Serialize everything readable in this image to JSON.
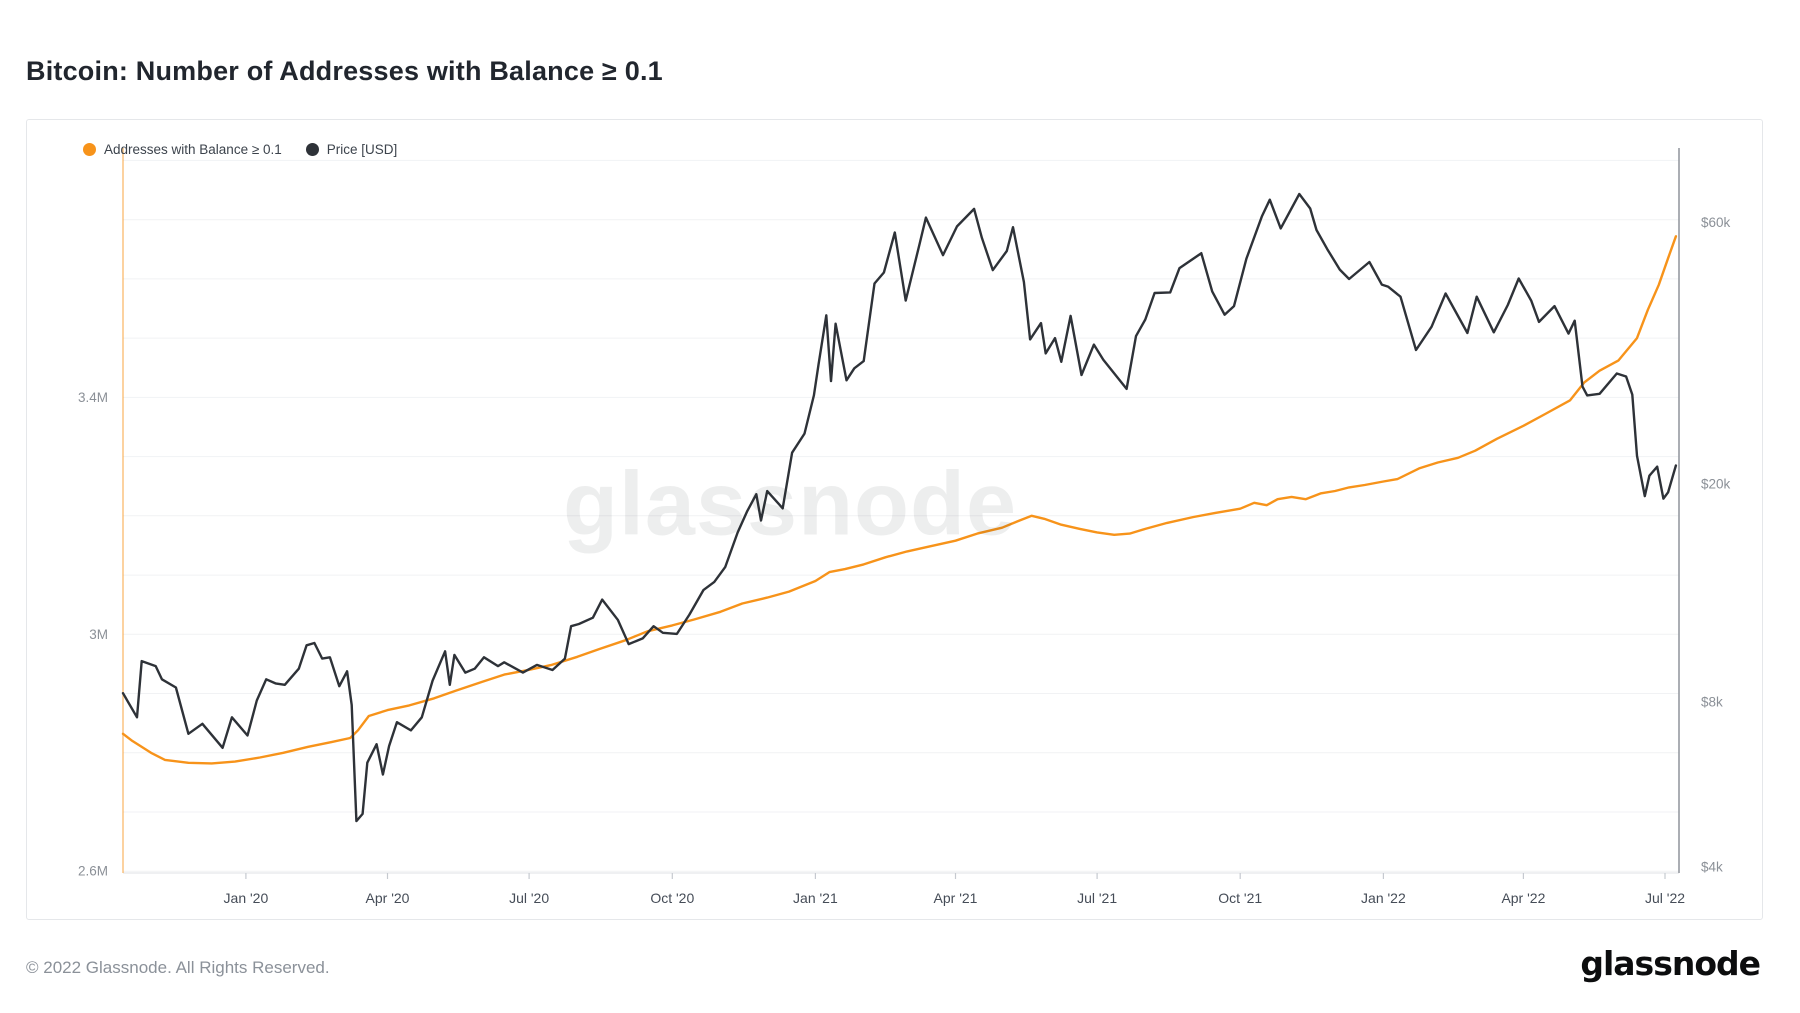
{
  "page": {
    "title": "Bitcoin: Number of Addresses with Balance ≥ 0.1",
    "footer": "© 2022 Glassnode. All Rights Reserved.",
    "brand_logo": "glassnode",
    "watermark": "glassnode"
  },
  "legend": [
    {
      "label": "Addresses with Balance ≥ 0.1",
      "color": "#f7931a"
    },
    {
      "label": "Price [USD]",
      "color": "#2e3238"
    }
  ],
  "chart_data": {
    "type": "line",
    "title": "Bitcoin: Number of Addresses with Balance ≥ 0.1",
    "grid": true,
    "legend_position": "top-left",
    "x_axis": {
      "type": "time",
      "start": "2019-10-14",
      "end": "2022-07-10",
      "ticks": [
        {
          "date": "2020-01-01",
          "label": "Jan '20"
        },
        {
          "date": "2020-04-01",
          "label": "Apr '20"
        },
        {
          "date": "2020-07-01",
          "label": "Jul '20"
        },
        {
          "date": "2020-10-01",
          "label": "Oct '20"
        },
        {
          "date": "2021-01-01",
          "label": "Jan '21"
        },
        {
          "date": "2021-04-01",
          "label": "Apr '21"
        },
        {
          "date": "2021-07-01",
          "label": "Jul '21"
        },
        {
          "date": "2021-10-01",
          "label": "Oct '21"
        },
        {
          "date": "2022-01-01",
          "label": "Jan '22"
        },
        {
          "date": "2022-04-01",
          "label": "Apr '22"
        },
        {
          "date": "2022-07-01",
          "label": "Jul '22"
        }
      ]
    },
    "y_axis_left": {
      "name": "Addresses with Balance ≥ 0.1",
      "scale": "linear",
      "unit": "million addresses",
      "min": 2.597,
      "max": 3.821,
      "axis_line_color": "#f7931a",
      "ticks": [
        {
          "value": 3.4,
          "label": "3.4M"
        },
        {
          "value": 3.0,
          "label": "3M"
        },
        {
          "value": 2.6,
          "label": "2.6M"
        }
      ],
      "gridlines": [
        2.6,
        2.7,
        2.8,
        2.9,
        3.0,
        3.1,
        3.2,
        3.3,
        3.4,
        3.5,
        3.6,
        3.7,
        3.8
      ]
    },
    "y_axis_right": {
      "name": "Price [USD]",
      "scale": "log",
      "unit": "USD",
      "min": 3900,
      "max": 82000,
      "axis_line_color": "#8f949b",
      "ticks": [
        {
          "value": 60000,
          "label": "$60k"
        },
        {
          "value": 20000,
          "label": "$20k"
        },
        {
          "value": 8000,
          "label": "$8k"
        },
        {
          "value": 4000,
          "label": "$4k"
        }
      ]
    },
    "series": [
      {
        "name": "Addresses with Balance ≥ 0.1",
        "axis": "left",
        "color": "#f7931a",
        "points": [
          [
            "2019-10-14",
            2.832
          ],
          [
            "2019-10-20",
            2.82
          ],
          [
            "2019-11-01",
            2.8
          ],
          [
            "2019-11-10",
            2.788
          ],
          [
            "2019-11-25",
            2.783
          ],
          [
            "2019-12-10",
            2.782
          ],
          [
            "2019-12-25",
            2.785
          ],
          [
            "2020-01-10",
            2.792
          ],
          [
            "2020-01-25",
            2.8
          ],
          [
            "2020-02-10",
            2.81
          ],
          [
            "2020-02-25",
            2.818
          ],
          [
            "2020-03-08",
            2.825
          ],
          [
            "2020-03-13",
            2.838
          ],
          [
            "2020-03-20",
            2.862
          ],
          [
            "2020-04-01",
            2.872
          ],
          [
            "2020-04-15",
            2.88
          ],
          [
            "2020-05-01",
            2.892
          ],
          [
            "2020-05-15",
            2.905
          ],
          [
            "2020-06-01",
            2.92
          ],
          [
            "2020-06-15",
            2.932
          ],
          [
            "2020-07-01",
            2.94
          ],
          [
            "2020-07-15",
            2.948
          ],
          [
            "2020-08-01",
            2.962
          ],
          [
            "2020-08-15",
            2.975
          ],
          [
            "2020-09-01",
            2.99
          ],
          [
            "2020-09-15",
            3.005
          ],
          [
            "2020-10-01",
            3.015
          ],
          [
            "2020-10-15",
            3.025
          ],
          [
            "2020-11-01",
            3.038
          ],
          [
            "2020-11-15",
            3.052
          ],
          [
            "2020-12-01",
            3.062
          ],
          [
            "2020-12-15",
            3.072
          ],
          [
            "2021-01-01",
            3.09
          ],
          [
            "2021-01-10",
            3.105
          ],
          [
            "2021-01-20",
            3.11
          ],
          [
            "2021-02-01",
            3.118
          ],
          [
            "2021-02-15",
            3.13
          ],
          [
            "2021-03-01",
            3.14
          ],
          [
            "2021-03-15",
            3.148
          ],
          [
            "2021-04-01",
            3.158
          ],
          [
            "2021-04-15",
            3.17
          ],
          [
            "2021-05-01",
            3.18
          ],
          [
            "2021-05-12",
            3.192
          ],
          [
            "2021-05-20",
            3.2
          ],
          [
            "2021-05-28",
            3.195
          ],
          [
            "2021-06-08",
            3.185
          ],
          [
            "2021-06-20",
            3.178
          ],
          [
            "2021-07-01",
            3.172
          ],
          [
            "2021-07-12",
            3.168
          ],
          [
            "2021-07-22",
            3.17
          ],
          [
            "2021-08-01",
            3.178
          ],
          [
            "2021-08-15",
            3.188
          ],
          [
            "2021-09-01",
            3.198
          ],
          [
            "2021-09-15",
            3.205
          ],
          [
            "2021-10-01",
            3.212
          ],
          [
            "2021-10-10",
            3.222
          ],
          [
            "2021-10-18",
            3.218
          ],
          [
            "2021-10-25",
            3.228
          ],
          [
            "2021-11-03",
            3.232
          ],
          [
            "2021-11-12",
            3.228
          ],
          [
            "2021-11-22",
            3.238
          ],
          [
            "2021-12-01",
            3.242
          ],
          [
            "2021-12-10",
            3.248
          ],
          [
            "2021-12-20",
            3.252
          ],
          [
            "2022-01-01",
            3.258
          ],
          [
            "2022-01-10",
            3.262
          ],
          [
            "2022-01-24",
            3.28
          ],
          [
            "2022-02-05",
            3.29
          ],
          [
            "2022-02-18",
            3.298
          ],
          [
            "2022-03-01",
            3.31
          ],
          [
            "2022-03-15",
            3.33
          ],
          [
            "2022-04-01",
            3.352
          ],
          [
            "2022-04-15",
            3.372
          ],
          [
            "2022-05-01",
            3.395
          ],
          [
            "2022-05-10",
            3.425
          ],
          [
            "2022-05-20",
            3.445
          ],
          [
            "2022-06-01",
            3.462
          ],
          [
            "2022-06-13",
            3.5
          ],
          [
            "2022-06-20",
            3.548
          ],
          [
            "2022-06-27",
            3.59
          ],
          [
            "2022-07-03",
            3.635
          ],
          [
            "2022-07-08",
            3.672
          ]
        ]
      },
      {
        "name": "Price [USD]",
        "axis": "right",
        "color": "#2e3238",
        "points": [
          [
            "2019-10-14",
            8300
          ],
          [
            "2019-10-23",
            7500
          ],
          [
            "2019-10-26",
            9500
          ],
          [
            "2019-11-04",
            9300
          ],
          [
            "2019-11-08",
            8800
          ],
          [
            "2019-11-17",
            8500
          ],
          [
            "2019-11-25",
            7000
          ],
          [
            "2019-12-04",
            7300
          ],
          [
            "2019-12-17",
            6600
          ],
          [
            "2019-12-23",
            7500
          ],
          [
            "2020-01-02",
            6950
          ],
          [
            "2020-01-08",
            8050
          ],
          [
            "2020-01-14",
            8800
          ],
          [
            "2020-01-20",
            8650
          ],
          [
            "2020-01-26",
            8600
          ],
          [
            "2020-02-04",
            9200
          ],
          [
            "2020-02-09",
            10150
          ],
          [
            "2020-02-14",
            10250
          ],
          [
            "2020-02-19",
            9600
          ],
          [
            "2020-02-24",
            9650
          ],
          [
            "2020-03-01",
            8550
          ],
          [
            "2020-03-06",
            9100
          ],
          [
            "2020-03-09",
            7900
          ],
          [
            "2020-03-12",
            4850
          ],
          [
            "2020-03-16",
            5000
          ],
          [
            "2020-03-19",
            6200
          ],
          [
            "2020-03-25",
            6700
          ],
          [
            "2020-03-29",
            5900
          ],
          [
            "2020-04-02",
            6650
          ],
          [
            "2020-04-07",
            7350
          ],
          [
            "2020-04-16",
            7100
          ],
          [
            "2020-04-23",
            7500
          ],
          [
            "2020-04-30",
            8750
          ],
          [
            "2020-05-08",
            9900
          ],
          [
            "2020-05-11",
            8600
          ],
          [
            "2020-05-14",
            9750
          ],
          [
            "2020-05-21",
            9050
          ],
          [
            "2020-05-27",
            9200
          ],
          [
            "2020-06-02",
            9650
          ],
          [
            "2020-06-11",
            9300
          ],
          [
            "2020-06-15",
            9450
          ],
          [
            "2020-06-27",
            9050
          ],
          [
            "2020-07-06",
            9350
          ],
          [
            "2020-07-16",
            9150
          ],
          [
            "2020-07-24",
            9600
          ],
          [
            "2020-07-28",
            11000
          ],
          [
            "2020-08-02",
            11100
          ],
          [
            "2020-08-11",
            11400
          ],
          [
            "2020-08-17",
            12300
          ],
          [
            "2020-08-27",
            11300
          ],
          [
            "2020-09-03",
            10200
          ],
          [
            "2020-09-12",
            10450
          ],
          [
            "2020-09-19",
            11000
          ],
          [
            "2020-09-25",
            10700
          ],
          [
            "2020-10-04",
            10650
          ],
          [
            "2020-10-12",
            11550
          ],
          [
            "2020-10-21",
            12800
          ],
          [
            "2020-10-28",
            13250
          ],
          [
            "2020-11-04",
            14100
          ],
          [
            "2020-11-12",
            16300
          ],
          [
            "2020-11-18",
            17800
          ],
          [
            "2020-11-24",
            19150
          ],
          [
            "2020-11-27",
            17150
          ],
          [
            "2020-12-01",
            19400
          ],
          [
            "2020-12-11",
            18050
          ],
          [
            "2020-12-17",
            22800
          ],
          [
            "2020-12-25",
            24700
          ],
          [
            "2020-12-31",
            29000
          ],
          [
            "2021-01-03",
            33000
          ],
          [
            "2021-01-08",
            40600
          ],
          [
            "2021-01-11",
            30800
          ],
          [
            "2021-01-14",
            39200
          ],
          [
            "2021-01-21",
            30900
          ],
          [
            "2021-01-26",
            32500
          ],
          [
            "2021-02-01",
            33500
          ],
          [
            "2021-02-08",
            46400
          ],
          [
            "2021-02-14",
            48600
          ],
          [
            "2021-02-21",
            57500
          ],
          [
            "2021-02-28",
            43200
          ],
          [
            "2021-03-09",
            54900
          ],
          [
            "2021-03-13",
            61200
          ],
          [
            "2021-03-24",
            52300
          ],
          [
            "2021-04-02",
            59000
          ],
          [
            "2021-04-13",
            63500
          ],
          [
            "2021-04-18",
            56200
          ],
          [
            "2021-04-25",
            49100
          ],
          [
            "2021-05-04",
            53200
          ],
          [
            "2021-05-08",
            58800
          ],
          [
            "2021-05-15",
            46700
          ],
          [
            "2021-05-19",
            36700
          ],
          [
            "2021-05-26",
            39300
          ],
          [
            "2021-05-29",
            34600
          ],
          [
            "2021-06-04",
            36900
          ],
          [
            "2021-06-08",
            33400
          ],
          [
            "2021-06-14",
            40500
          ],
          [
            "2021-06-21",
            31600
          ],
          [
            "2021-06-29",
            35900
          ],
          [
            "2021-07-05",
            33700
          ],
          [
            "2021-07-20",
            29800
          ],
          [
            "2021-07-26",
            37200
          ],
          [
            "2021-08-01",
            39900
          ],
          [
            "2021-08-07",
            44600
          ],
          [
            "2021-08-17",
            44700
          ],
          [
            "2021-08-23",
            49500
          ],
          [
            "2021-09-06",
            52700
          ],
          [
            "2021-09-13",
            44900
          ],
          [
            "2021-09-21",
            40700
          ],
          [
            "2021-09-27",
            42200
          ],
          [
            "2021-10-05",
            51500
          ],
          [
            "2021-10-15",
            61600
          ],
          [
            "2021-10-20",
            66000
          ],
          [
            "2021-10-27",
            58500
          ],
          [
            "2021-11-08",
            67600
          ],
          [
            "2021-11-15",
            63600
          ],
          [
            "2021-11-19",
            58100
          ],
          [
            "2021-11-26",
            53600
          ],
          [
            "2021-12-04",
            49200
          ],
          [
            "2021-12-10",
            47300
          ],
          [
            "2021-12-23",
            50800
          ],
          [
            "2021-12-31",
            46200
          ],
          [
            "2022-01-04",
            45800
          ],
          [
            "2022-01-12",
            43900
          ],
          [
            "2022-01-22",
            35100
          ],
          [
            "2022-02-01",
            38700
          ],
          [
            "2022-02-10",
            44500
          ],
          [
            "2022-02-24",
            37700
          ],
          [
            "2022-03-02",
            43900
          ],
          [
            "2022-03-13",
            37800
          ],
          [
            "2022-03-22",
            42400
          ],
          [
            "2022-03-29",
            47400
          ],
          [
            "2022-04-06",
            43200
          ],
          [
            "2022-04-11",
            39500
          ],
          [
            "2022-04-21",
            42200
          ],
          [
            "2022-04-30",
            37600
          ],
          [
            "2022-05-04",
            39700
          ],
          [
            "2022-05-09",
            30100
          ],
          [
            "2022-05-12",
            29000
          ],
          [
            "2022-05-20",
            29200
          ],
          [
            "2022-05-31",
            31800
          ],
          [
            "2022-06-06",
            31400
          ],
          [
            "2022-06-10",
            29100
          ],
          [
            "2022-06-13",
            22500
          ],
          [
            "2022-06-18",
            19000
          ],
          [
            "2022-06-21",
            20700
          ],
          [
            "2022-06-26",
            21500
          ],
          [
            "2022-06-30",
            18800
          ],
          [
            "2022-07-03",
            19300
          ],
          [
            "2022-07-08",
            21600
          ]
        ]
      }
    ],
    "style": {
      "gridline_color": "#f1f2f4",
      "bottom_axis_color": "#dfe1e4",
      "tick_color": "#c6cad0",
      "y_label_color": "#8b9097",
      "x_label_color": "#454c57"
    }
  }
}
